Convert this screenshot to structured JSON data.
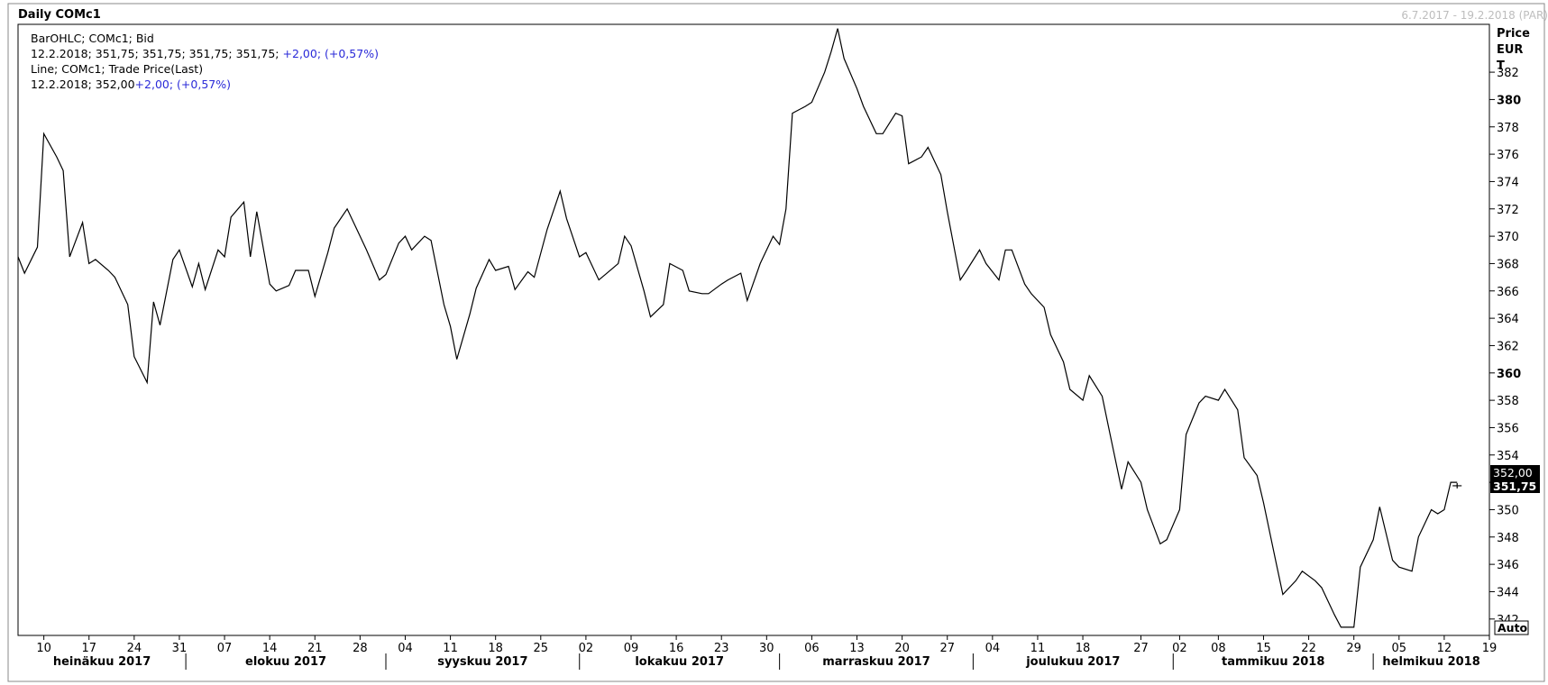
{
  "header": {
    "title": "Daily COMc1",
    "range": "6.7.2017 - 19.2.2018 (PAR)"
  },
  "legend": {
    "line1": "BarOHLC; COMc1; Bid",
    "line2_values": "12.2.2018; 351,75; 351,75; 351,75; 351,75;",
    "line2_change": "+2,00; (+0,57%)",
    "line3": "Line; COMc1; Trade Price(Last)",
    "line4_values": "12.2.2018; 352,00",
    "line4_change": "+2,00; (+0,57%)"
  },
  "colors": {
    "line": "#000000",
    "change_text": "#2a2ad8",
    "range_text": "#bdbdbd",
    "frame": "#8a8a8a",
    "last_badge_bg": "#000000",
    "last_badge_fg": "#ffffff"
  },
  "auto_label": "Auto",
  "last_prices": {
    "trade": "352,00",
    "bid": "351,75"
  },
  "chart_data": {
    "type": "line",
    "ylabel": "Price EUR T",
    "ylabel_lines": [
      "Price",
      "EUR",
      "T"
    ],
    "ylim": [
      340.8,
      385.5
    ],
    "y_ticks": [
      342,
      344,
      346,
      348,
      350,
      352,
      354,
      356,
      358,
      360,
      362,
      364,
      366,
      368,
      370,
      372,
      374,
      376,
      378,
      380,
      382
    ],
    "y_ticks_bold": [
      360,
      380
    ],
    "x_day_ticks": [
      {
        "date": "2017-07-10",
        "label": "10"
      },
      {
        "date": "2017-07-17",
        "label": "17"
      },
      {
        "date": "2017-07-24",
        "label": "24"
      },
      {
        "date": "2017-07-31",
        "label": "31"
      },
      {
        "date": "2017-08-07",
        "label": "07"
      },
      {
        "date": "2017-08-14",
        "label": "14"
      },
      {
        "date": "2017-08-21",
        "label": "21"
      },
      {
        "date": "2017-08-28",
        "label": "28"
      },
      {
        "date": "2017-09-04",
        "label": "04"
      },
      {
        "date": "2017-09-11",
        "label": "11"
      },
      {
        "date": "2017-09-18",
        "label": "18"
      },
      {
        "date": "2017-09-25",
        "label": "25"
      },
      {
        "date": "2017-10-02",
        "label": "02"
      },
      {
        "date": "2017-10-09",
        "label": "09"
      },
      {
        "date": "2017-10-16",
        "label": "16"
      },
      {
        "date": "2017-10-23",
        "label": "23"
      },
      {
        "date": "2017-10-30",
        "label": "30"
      },
      {
        "date": "2017-11-06",
        "label": "06"
      },
      {
        "date": "2017-11-13",
        "label": "13"
      },
      {
        "date": "2017-11-20",
        "label": "20"
      },
      {
        "date": "2017-11-27",
        "label": "27"
      },
      {
        "date": "2017-12-04",
        "label": "04"
      },
      {
        "date": "2017-12-11",
        "label": "11"
      },
      {
        "date": "2017-12-18",
        "label": "18"
      },
      {
        "date": "2017-12-27",
        "label": "27"
      },
      {
        "date": "2018-01-02",
        "label": "02"
      },
      {
        "date": "2018-01-08",
        "label": "08"
      },
      {
        "date": "2018-01-15",
        "label": "15"
      },
      {
        "date": "2018-01-22",
        "label": "22"
      },
      {
        "date": "2018-01-29",
        "label": "29"
      },
      {
        "date": "2018-02-05",
        "label": "05"
      },
      {
        "date": "2018-02-12",
        "label": "12"
      },
      {
        "date": "2018-02-19",
        "label": "19"
      }
    ],
    "months": [
      {
        "label": "heinäkuu 2017",
        "start": "2017-07-01"
      },
      {
        "label": "elokuu 2017",
        "start": "2017-08-01"
      },
      {
        "label": "syyskuu 2017",
        "start": "2017-09-01"
      },
      {
        "label": "lokakuu 2017",
        "start": "2017-10-01"
      },
      {
        "label": "marraskuu 2017",
        "start": "2017-11-01"
      },
      {
        "label": "joulukuu 2017",
        "start": "2017-12-01"
      },
      {
        "label": "tammikuu 2018",
        "start": "2018-01-01"
      },
      {
        "label": "helmikuu 2018",
        "start": "2018-02-01"
      }
    ],
    "xlim": [
      "2017-07-06",
      "2018-02-19"
    ],
    "series": [
      {
        "values": [
          [
            "2017-07-06",
            368.5
          ],
          [
            "2017-07-07",
            367.3
          ],
          [
            "2017-07-09",
            369.2
          ],
          [
            "2017-07-10",
            377.5
          ],
          [
            "2017-07-12",
            375.8
          ],
          [
            "2017-07-13",
            374.8
          ],
          [
            "2017-07-14",
            368.5
          ],
          [
            "2017-07-16",
            371.0
          ],
          [
            "2017-07-17",
            368.0
          ],
          [
            "2017-07-18",
            368.3
          ],
          [
            "2017-07-20",
            367.5
          ],
          [
            "2017-07-21",
            367.0
          ],
          [
            "2017-07-23",
            365.0
          ],
          [
            "2017-07-24",
            361.2
          ],
          [
            "2017-07-26",
            359.3
          ],
          [
            "2017-07-27",
            365.2
          ],
          [
            "2017-07-28",
            363.5
          ],
          [
            "2017-07-30",
            368.3
          ],
          [
            "2017-07-31",
            369.0
          ],
          [
            "2017-08-02",
            366.3
          ],
          [
            "2017-08-03",
            368.0
          ],
          [
            "2017-08-04",
            366.1
          ],
          [
            "2017-08-06",
            369.0
          ],
          [
            "2017-08-07",
            368.5
          ],
          [
            "2017-08-08",
            371.4
          ],
          [
            "2017-08-10",
            372.5
          ],
          [
            "2017-08-11",
            368.5
          ],
          [
            "2017-08-12",
            371.8
          ],
          [
            "2017-08-14",
            366.5
          ],
          [
            "2017-08-15",
            366.0
          ],
          [
            "2017-08-17",
            366.4
          ],
          [
            "2017-08-18",
            367.5
          ],
          [
            "2017-08-20",
            367.5
          ],
          [
            "2017-08-21",
            365.6
          ],
          [
            "2017-08-23",
            368.8
          ],
          [
            "2017-08-24",
            370.6
          ],
          [
            "2017-08-26",
            372.0
          ],
          [
            "2017-08-28",
            370.0
          ],
          [
            "2017-08-29",
            369.0
          ],
          [
            "2017-08-31",
            366.8
          ],
          [
            "2017-09-01",
            367.2
          ],
          [
            "2017-09-03",
            369.5
          ],
          [
            "2017-09-04",
            370.0
          ],
          [
            "2017-09-05",
            369.0
          ],
          [
            "2017-09-07",
            370.0
          ],
          [
            "2017-09-08",
            369.7
          ],
          [
            "2017-09-10",
            365.0
          ],
          [
            "2017-09-11",
            363.4
          ],
          [
            "2017-09-12",
            361.0
          ],
          [
            "2017-09-14",
            364.3
          ],
          [
            "2017-09-15",
            366.2
          ],
          [
            "2017-09-17",
            368.3
          ],
          [
            "2017-09-18",
            367.5
          ],
          [
            "2017-09-20",
            367.8
          ],
          [
            "2017-09-21",
            366.1
          ],
          [
            "2017-09-23",
            367.4
          ],
          [
            "2017-09-24",
            367.0
          ],
          [
            "2017-09-26",
            370.5
          ],
          [
            "2017-09-28",
            373.3
          ],
          [
            "2017-09-29",
            371.3
          ],
          [
            "2017-10-01",
            368.5
          ],
          [
            "2017-10-02",
            368.8
          ],
          [
            "2017-10-04",
            366.8
          ],
          [
            "2017-10-05",
            367.2
          ],
          [
            "2017-10-07",
            368.0
          ],
          [
            "2017-10-08",
            370.0
          ],
          [
            "2017-10-09",
            369.3
          ],
          [
            "2017-10-11",
            366.0
          ],
          [
            "2017-10-12",
            364.1
          ],
          [
            "2017-10-14",
            365.0
          ],
          [
            "2017-10-15",
            368.0
          ],
          [
            "2017-10-17",
            367.5
          ],
          [
            "2017-10-18",
            366.0
          ],
          [
            "2017-10-20",
            365.8
          ],
          [
            "2017-10-21",
            365.8
          ],
          [
            "2017-10-23",
            366.5
          ],
          [
            "2017-10-24",
            366.8
          ],
          [
            "2017-10-26",
            367.3
          ],
          [
            "2017-10-27",
            365.3
          ],
          [
            "2017-10-29",
            368.0
          ],
          [
            "2017-10-31",
            370.0
          ],
          [
            "2017-11-01",
            369.4
          ],
          [
            "2017-11-02",
            372.0
          ],
          [
            "2017-11-03",
            379.0
          ],
          [
            "2017-11-05",
            379.5
          ],
          [
            "2017-11-06",
            379.8
          ],
          [
            "2017-11-08",
            382.0
          ],
          [
            "2017-11-09",
            383.5
          ],
          [
            "2017-11-10",
            385.2
          ],
          [
            "2017-11-11",
            383.0
          ],
          [
            "2017-11-13",
            380.8
          ],
          [
            "2017-11-14",
            379.5
          ],
          [
            "2017-11-16",
            377.5
          ],
          [
            "2017-11-17",
            377.5
          ],
          [
            "2017-11-19",
            379.0
          ],
          [
            "2017-11-20",
            378.8
          ],
          [
            "2017-11-21",
            375.3
          ],
          [
            "2017-11-23",
            375.8
          ],
          [
            "2017-11-24",
            376.5
          ],
          [
            "2017-11-26",
            374.5
          ],
          [
            "2017-11-27",
            371.8
          ],
          [
            "2017-11-29",
            366.8
          ],
          [
            "2017-11-30",
            367.5
          ],
          [
            "2017-12-02",
            369.0
          ],
          [
            "2017-12-03",
            368.0
          ],
          [
            "2017-12-05",
            366.8
          ],
          [
            "2017-12-06",
            369.0
          ],
          [
            "2017-12-07",
            369.0
          ],
          [
            "2017-12-09",
            366.5
          ],
          [
            "2017-12-10",
            365.8
          ],
          [
            "2017-12-12",
            364.8
          ],
          [
            "2017-12-13",
            362.8
          ],
          [
            "2017-12-15",
            360.8
          ],
          [
            "2017-12-16",
            358.8
          ],
          [
            "2017-12-18",
            358.0
          ],
          [
            "2017-12-19",
            359.8
          ],
          [
            "2017-12-21",
            358.3
          ],
          [
            "2017-12-22",
            356.0
          ],
          [
            "2017-12-24",
            351.5
          ],
          [
            "2017-12-25",
            353.5
          ],
          [
            "2017-12-27",
            352.0
          ],
          [
            "2017-12-28",
            350.0
          ],
          [
            "2017-12-30",
            347.5
          ],
          [
            "2017-12-31",
            347.8
          ],
          [
            "2018-01-02",
            350.0
          ],
          [
            "2018-01-03",
            355.5
          ],
          [
            "2018-01-05",
            357.8
          ],
          [
            "2018-01-06",
            358.3
          ],
          [
            "2018-01-08",
            358.0
          ],
          [
            "2018-01-09",
            358.8
          ],
          [
            "2018-01-11",
            357.3
          ],
          [
            "2018-01-12",
            353.8
          ],
          [
            "2018-01-14",
            352.5
          ],
          [
            "2018-01-15",
            350.5
          ],
          [
            "2018-01-17",
            346.0
          ],
          [
            "2018-01-18",
            343.8
          ],
          [
            "2018-01-20",
            344.8
          ],
          [
            "2018-01-21",
            345.5
          ],
          [
            "2018-01-23",
            344.8
          ],
          [
            "2018-01-24",
            344.3
          ],
          [
            "2018-01-26",
            342.3
          ],
          [
            "2018-01-27",
            341.4
          ],
          [
            "2018-01-29",
            341.4
          ],
          [
            "2018-01-30",
            345.8
          ],
          [
            "2018-02-01",
            347.8
          ],
          [
            "2018-02-02",
            350.2
          ],
          [
            "2018-02-04",
            346.3
          ],
          [
            "2018-02-05",
            345.8
          ],
          [
            "2018-02-07",
            345.5
          ],
          [
            "2018-02-08",
            348.0
          ],
          [
            "2018-02-10",
            350.0
          ],
          [
            "2018-02-11",
            349.7
          ],
          [
            "2018-02-12",
            350.0
          ],
          [
            "2018-02-13",
            352.0
          ],
          [
            "2018-02-14",
            352.0
          ]
        ]
      }
    ]
  }
}
